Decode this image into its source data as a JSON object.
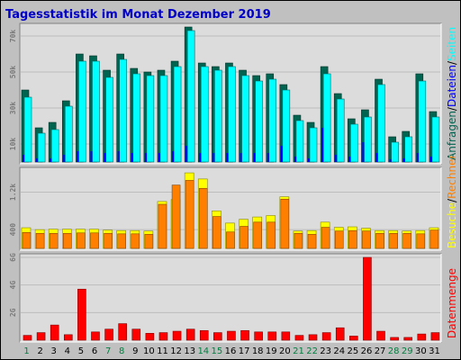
{
  "title": "Tagesstatistik im Monat Dezember 2019",
  "colors": {
    "background": "#c0c0c0",
    "panel": "#dcdcdc",
    "hits": "#006450",
    "files": "#00ffff",
    "pages": "#0000ff",
    "visits": "#ffff00",
    "sites": "#ff8000",
    "kbytes": "#ff0000",
    "title": "#0000c8",
    "weekend_label": "#008040",
    "weekday_label": "#000000"
  },
  "chart_data": [
    {
      "type": "bar",
      "name": "requests-panel",
      "categories": [
        "1",
        "2",
        "3",
        "4",
        "5",
        "6",
        "7",
        "8",
        "9",
        "10",
        "11",
        "12",
        "13",
        "14",
        "15",
        "16",
        "17",
        "18",
        "19",
        "20",
        "21",
        "22",
        "23",
        "24",
        "25",
        "26",
        "27",
        "28",
        "29",
        "30",
        "31"
      ],
      "weekend_days": [
        "1",
        "7",
        "8",
        "14",
        "15",
        "21",
        "22",
        "28",
        "29"
      ],
      "ylim": [
        0,
        75000
      ],
      "y_ticks": [
        {
          "value": 10000,
          "label": "10k"
        },
        {
          "value": 30000,
          "label": "30k"
        },
        {
          "value": 50000,
          "label": "50k"
        },
        {
          "value": 70000,
          "label": "70k"
        }
      ],
      "side_label": [
        "Anfragen",
        "/",
        "Dateien",
        "/",
        "Seiten"
      ],
      "side_label_colors": [
        "#006450",
        "#000000",
        "#0000ff",
        "#000000",
        "#00ffff"
      ],
      "series": [
        {
          "name": "Anfragen",
          "color": "#006450",
          "values": [
            40000,
            19000,
            22000,
            34000,
            60000,
            59000,
            51000,
            60000,
            52000,
            50000,
            51000,
            56000,
            75000,
            55000,
            53000,
            55000,
            51000,
            48000,
            49000,
            43000,
            26000,
            22000,
            53000,
            38000,
            24000,
            29000,
            46000,
            14000,
            17000,
            49000,
            28000
          ]
        },
        {
          "name": "Dateien",
          "color": "#00ffff",
          "values": [
            36000,
            16000,
            18000,
            31000,
            56000,
            56000,
            47000,
            57000,
            49000,
            48000,
            48000,
            53000,
            73000,
            53000,
            51000,
            53000,
            48000,
            45000,
            46000,
            40000,
            23000,
            19000,
            49000,
            35000,
            21000,
            25000,
            43000,
            11000,
            14000,
            45000,
            25000
          ]
        },
        {
          "name": "Seiten",
          "color": "#0000ff",
          "values": [
            4000,
            2000,
            2000,
            4000,
            6000,
            6000,
            5000,
            6000,
            5000,
            5000,
            5000,
            6000,
            9000,
            5000,
            5000,
            5000,
            5000,
            5000,
            5000,
            9000,
            3000,
            2000,
            19000,
            4000,
            3000,
            11000,
            5000,
            1500,
            2000,
            5000,
            3000
          ]
        }
      ]
    },
    {
      "type": "bar",
      "name": "visits-panel",
      "categories": [
        "1",
        "2",
        "3",
        "4",
        "5",
        "6",
        "7",
        "8",
        "9",
        "10",
        "11",
        "12",
        "13",
        "14",
        "15",
        "16",
        "17",
        "18",
        "19",
        "20",
        "21",
        "22",
        "23",
        "24",
        "25",
        "26",
        "27",
        "28",
        "29",
        "30",
        "31"
      ],
      "ylim": [
        0,
        1650
      ],
      "y_ticks": [
        {
          "value": 400,
          "label": "400"
        },
        {
          "value": 1200,
          "label": "1.2k"
        }
      ],
      "side_label": [
        "Besuche",
        "/",
        "Rechner"
      ],
      "side_label_colors": [
        "#ffff00",
        "#000000",
        "#ff8000"
      ],
      "series": [
        {
          "name": "Besuche",
          "color": "#ffff00",
          "values": [
            440,
            400,
            410,
            410,
            410,
            410,
            390,
            380,
            380,
            370,
            1000,
            1040,
            1610,
            1480,
            800,
            540,
            620,
            670,
            700,
            1100,
            370,
            380,
            560,
            450,
            460,
            430,
            380,
            380,
            370,
            380,
            440
          ]
        },
        {
          "name": "Rechner",
          "color": "#ff8000",
          "values": [
            340,
            320,
            320,
            320,
            330,
            330,
            320,
            310,
            310,
            300,
            940,
            1350,
            1450,
            1280,
            680,
            350,
            470,
            560,
            560,
            1050,
            320,
            300,
            450,
            370,
            380,
            370,
            320,
            320,
            320,
            310,
            390
          ]
        }
      ]
    },
    {
      "type": "bar",
      "name": "volume-panel",
      "categories": [
        "1",
        "2",
        "3",
        "4",
        "5",
        "6",
        "7",
        "8",
        "9",
        "10",
        "11",
        "12",
        "13",
        "14",
        "15",
        "16",
        "17",
        "18",
        "19",
        "20",
        "21",
        "22",
        "23",
        "24",
        "25",
        "26",
        "27",
        "28",
        "29",
        "30",
        "31"
      ],
      "ylim": [
        0,
        6
      ],
      "y_ticks": [
        {
          "value": 2,
          "label": "2G"
        },
        {
          "value": 4,
          "label": "4G"
        },
        {
          "value": 6,
          "label": "6G"
        }
      ],
      "side_label": [
        "Datenmenge"
      ],
      "side_label_colors": [
        "#ff0000"
      ],
      "series": [
        {
          "name": "Datenmenge",
          "color": "#ff0000",
          "values": [
            0.35,
            0.55,
            1.1,
            0.4,
            3.7,
            0.6,
            0.8,
            1.2,
            0.8,
            0.5,
            0.55,
            0.65,
            0.8,
            0.7,
            0.55,
            0.65,
            0.7,
            0.6,
            0.6,
            0.6,
            0.35,
            0.4,
            0.55,
            0.9,
            0.3,
            6.0,
            0.65,
            0.2,
            0.2,
            0.45,
            0.55
          ]
        }
      ]
    }
  ]
}
